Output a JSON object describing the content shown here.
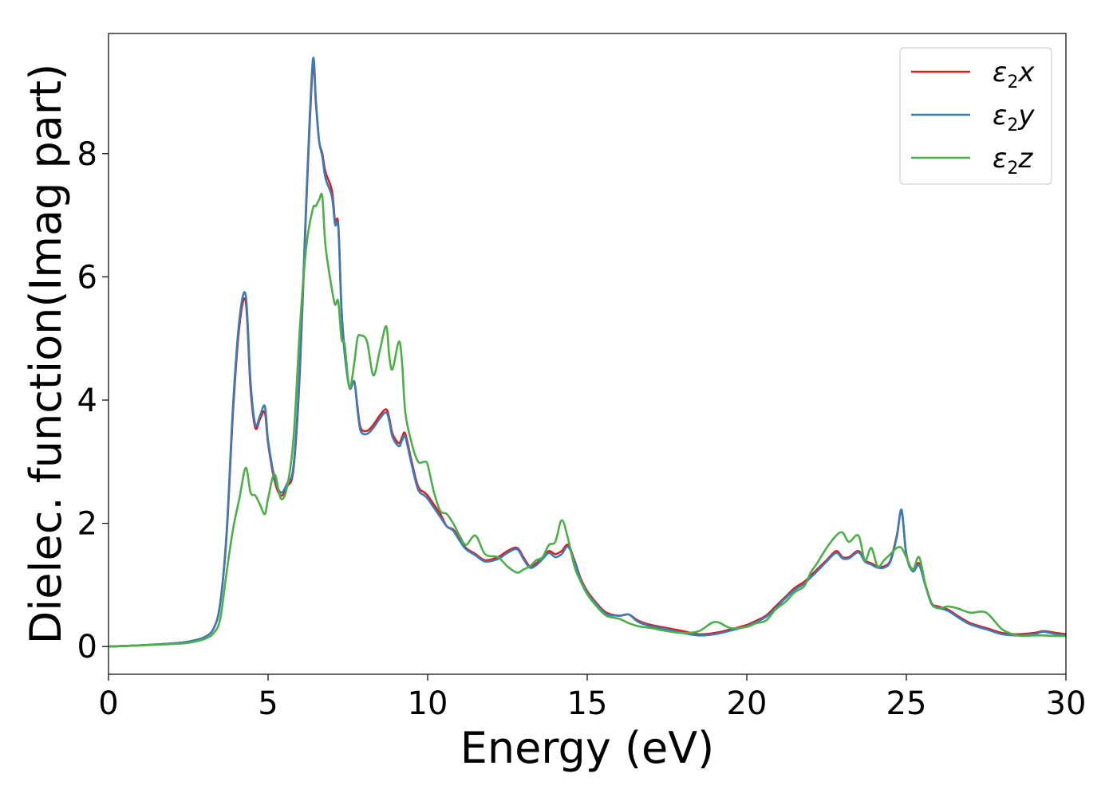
{
  "chart_data": {
    "type": "line",
    "title": "",
    "xlabel": "Energy (eV)",
    "ylabel": "Dielec. function(Imag part)",
    "xlim": [
      0,
      30
    ],
    "ylim": [
      -0.45,
      9.95
    ],
    "xticks": [
      0,
      5,
      10,
      15,
      20,
      25,
      30
    ],
    "yticks": [
      0,
      2,
      4,
      6,
      8
    ],
    "grid": false,
    "legend_position": "top-right",
    "series": [
      {
        "name": "ε2x",
        "label_base": "ε",
        "label_sub": "2",
        "label_axis": "x",
        "color": "#e41a1c",
        "x": [
          0,
          1,
          2,
          2.5,
          3,
          3.3,
          3.5,
          3.7,
          3.9,
          4.1,
          4.3,
          4.45,
          4.6,
          4.75,
          4.9,
          5.0,
          5.2,
          5.4,
          5.6,
          5.8,
          6.0,
          6.2,
          6.4,
          6.5,
          6.6,
          6.7,
          6.8,
          7.0,
          7.1,
          7.2,
          7.3,
          7.4,
          7.55,
          7.7,
          7.8,
          7.9,
          8.1,
          8.3,
          8.5,
          8.7,
          8.8,
          8.9,
          9.1,
          9.2,
          9.3,
          9.5,
          9.7,
          9.9,
          10.0,
          10.2,
          10.4,
          10.6,
          10.8,
          11.0,
          11.2,
          11.5,
          11.8,
          12.2,
          12.5,
          12.8,
          13.0,
          13.2,
          13.4,
          13.6,
          13.8,
          14.0,
          14.2,
          14.4,
          14.6,
          14.8,
          15.0,
          15.3,
          15.6,
          16.0,
          16.3,
          16.6,
          17.0,
          17.5,
          18.0,
          18.5,
          19.0,
          19.5,
          20.0,
          20.3,
          20.6,
          20.9,
          21.2,
          21.5,
          21.8,
          22.0,
          22.2,
          22.5,
          22.8,
          23.0,
          23.2,
          23.5,
          23.7,
          23.9,
          24.1,
          24.3,
          24.5,
          24.7,
          24.85,
          25.0,
          25.2,
          25.4,
          25.6,
          25.8,
          26.0,
          26.3,
          26.6,
          27.0,
          27.5,
          28.0,
          28.5,
          29.0,
          29.3,
          29.7,
          30.0
        ],
        "y": [
          0,
          0.02,
          0.05,
          0.08,
          0.15,
          0.3,
          0.7,
          1.8,
          3.8,
          5.2,
          5.6,
          4.2,
          3.55,
          3.7,
          3.8,
          3.3,
          2.7,
          2.45,
          2.6,
          2.9,
          4.5,
          7.2,
          9.4,
          8.8,
          8.2,
          8.0,
          7.7,
          7.4,
          6.9,
          6.85,
          5.5,
          4.8,
          4.2,
          4.3,
          3.9,
          3.55,
          3.5,
          3.6,
          3.75,
          3.85,
          3.7,
          3.45,
          3.3,
          3.4,
          3.45,
          3.0,
          2.6,
          2.5,
          2.45,
          2.3,
          2.15,
          1.95,
          1.9,
          1.75,
          1.6,
          1.5,
          1.4,
          1.45,
          1.55,
          1.6,
          1.45,
          1.3,
          1.35,
          1.45,
          1.55,
          1.5,
          1.55,
          1.65,
          1.4,
          1.1,
          0.9,
          0.7,
          0.55,
          0.5,
          0.52,
          0.42,
          0.35,
          0.3,
          0.25,
          0.2,
          0.22,
          0.28,
          0.35,
          0.42,
          0.5,
          0.65,
          0.8,
          0.95,
          1.05,
          1.15,
          1.25,
          1.4,
          1.55,
          1.45,
          1.45,
          1.55,
          1.4,
          1.35,
          1.3,
          1.3,
          1.4,
          1.8,
          2.2,
          1.5,
          1.25,
          1.35,
          1.0,
          0.7,
          0.65,
          0.6,
          0.5,
          0.38,
          0.3,
          0.22,
          0.2,
          0.22,
          0.25,
          0.22,
          0.2
        ]
      },
      {
        "name": "ε2y",
        "label_base": "ε",
        "label_sub": "2",
        "label_axis": "y",
        "color": "#377eb8",
        "x": [
          0,
          1,
          2,
          2.5,
          3,
          3.3,
          3.5,
          3.7,
          3.9,
          4.1,
          4.3,
          4.45,
          4.6,
          4.75,
          4.9,
          5.0,
          5.2,
          5.4,
          5.6,
          5.8,
          6.0,
          6.2,
          6.4,
          6.5,
          6.6,
          6.7,
          6.8,
          7.0,
          7.1,
          7.2,
          7.3,
          7.4,
          7.55,
          7.7,
          7.8,
          7.9,
          8.1,
          8.3,
          8.5,
          8.7,
          8.8,
          8.9,
          9.1,
          9.2,
          9.3,
          9.5,
          9.7,
          9.9,
          10.0,
          10.2,
          10.4,
          10.6,
          10.8,
          11.0,
          11.2,
          11.5,
          11.8,
          12.2,
          12.5,
          12.8,
          13.0,
          13.2,
          13.4,
          13.6,
          13.8,
          14.0,
          14.2,
          14.4,
          14.6,
          14.8,
          15.0,
          15.3,
          15.6,
          16.0,
          16.3,
          16.6,
          17.0,
          17.5,
          18.0,
          18.5,
          19.0,
          19.5,
          20.0,
          20.3,
          20.6,
          20.9,
          21.2,
          21.5,
          21.8,
          22.0,
          22.2,
          22.5,
          22.8,
          23.0,
          23.2,
          23.5,
          23.7,
          23.9,
          24.1,
          24.3,
          24.5,
          24.7,
          24.85,
          25.0,
          25.2,
          25.4,
          25.6,
          25.8,
          26.0,
          26.3,
          26.6,
          27.0,
          27.5,
          28.0,
          28.5,
          29.0,
          29.3,
          29.7,
          30.0
        ],
        "y": [
          0,
          0.02,
          0.05,
          0.08,
          0.15,
          0.3,
          0.7,
          1.85,
          3.9,
          5.3,
          5.7,
          4.3,
          3.6,
          3.75,
          3.9,
          3.35,
          2.75,
          2.5,
          2.65,
          2.95,
          4.6,
          7.3,
          9.5,
          8.85,
          8.2,
          7.95,
          7.6,
          7.3,
          6.85,
          6.8,
          5.45,
          4.75,
          4.2,
          4.3,
          3.85,
          3.5,
          3.45,
          3.55,
          3.7,
          3.8,
          3.65,
          3.4,
          3.25,
          3.35,
          3.4,
          2.95,
          2.55,
          2.45,
          2.4,
          2.25,
          2.1,
          1.95,
          1.88,
          1.72,
          1.58,
          1.48,
          1.38,
          1.42,
          1.52,
          1.58,
          1.42,
          1.28,
          1.32,
          1.42,
          1.52,
          1.45,
          1.5,
          1.62,
          1.38,
          1.08,
          0.88,
          0.68,
          0.53,
          0.5,
          0.52,
          0.4,
          0.33,
          0.28,
          0.22,
          0.18,
          0.2,
          0.26,
          0.33,
          0.4,
          0.48,
          0.62,
          0.78,
          0.92,
          1.02,
          1.12,
          1.22,
          1.38,
          1.52,
          1.43,
          1.43,
          1.53,
          1.38,
          1.33,
          1.28,
          1.28,
          1.38,
          1.78,
          2.22,
          1.48,
          1.22,
          1.32,
          0.98,
          0.68,
          0.63,
          0.58,
          0.48,
          0.36,
          0.28,
          0.2,
          0.18,
          0.2,
          0.24,
          0.2,
          0.18
        ]
      },
      {
        "name": "ε2z",
        "label_base": "ε",
        "label_sub": "2",
        "label_axis": "z",
        "color": "#4daf4a",
        "x": [
          0,
          1,
          2,
          2.5,
          3,
          3.3,
          3.5,
          3.7,
          3.9,
          4.1,
          4.3,
          4.45,
          4.6,
          4.75,
          4.9,
          5.0,
          5.2,
          5.4,
          5.6,
          5.8,
          6.0,
          6.2,
          6.4,
          6.5,
          6.6,
          6.7,
          6.8,
          7.0,
          7.1,
          7.2,
          7.3,
          7.4,
          7.55,
          7.7,
          7.8,
          7.9,
          8.1,
          8.3,
          8.5,
          8.7,
          8.8,
          8.9,
          9.1,
          9.2,
          9.3,
          9.5,
          9.7,
          9.9,
          10.0,
          10.2,
          10.4,
          10.6,
          10.8,
          11.0,
          11.2,
          11.5,
          11.8,
          12.2,
          12.5,
          12.8,
          13.0,
          13.2,
          13.4,
          13.6,
          13.8,
          14.0,
          14.2,
          14.4,
          14.6,
          14.8,
          15.0,
          15.3,
          15.6,
          16.0,
          16.3,
          16.6,
          17.0,
          17.5,
          18.0,
          18.5,
          19.0,
          19.5,
          20.0,
          20.3,
          20.6,
          20.9,
          21.2,
          21.5,
          21.8,
          22.0,
          22.2,
          22.5,
          22.8,
          23.0,
          23.2,
          23.5,
          23.7,
          23.9,
          24.1,
          24.3,
          24.5,
          24.7,
          24.85,
          25.0,
          25.2,
          25.4,
          25.6,
          25.8,
          26.0,
          26.3,
          26.6,
          27.0,
          27.5,
          28.0,
          28.5,
          29.0,
          29.3,
          29.7,
          30.0
        ],
        "y": [
          0,
          0.02,
          0.04,
          0.06,
          0.12,
          0.22,
          0.45,
          1.2,
          1.9,
          2.4,
          2.9,
          2.5,
          2.45,
          2.3,
          2.15,
          2.4,
          2.8,
          2.4,
          2.6,
          3.4,
          5.2,
          6.5,
          7.1,
          7.15,
          7.25,
          7.3,
          6.5,
          5.8,
          5.55,
          5.6,
          5.0,
          4.9,
          4.2,
          4.6,
          5.0,
          5.05,
          4.95,
          4.4,
          4.8,
          5.2,
          4.7,
          4.5,
          4.95,
          4.6,
          3.8,
          3.3,
          3.0,
          3.0,
          2.95,
          2.5,
          2.2,
          2.15,
          2.0,
          1.8,
          1.65,
          1.8,
          1.5,
          1.45,
          1.3,
          1.2,
          1.25,
          1.3,
          1.4,
          1.45,
          1.65,
          1.7,
          2.05,
          1.75,
          1.3,
          1.05,
          0.85,
          0.65,
          0.5,
          0.45,
          0.38,
          0.33,
          0.3,
          0.25,
          0.22,
          0.25,
          0.4,
          0.3,
          0.32,
          0.38,
          0.42,
          0.6,
          0.72,
          0.88,
          0.98,
          1.2,
          1.35,
          1.6,
          1.8,
          1.85,
          1.7,
          1.8,
          1.4,
          1.6,
          1.3,
          1.4,
          1.5,
          1.6,
          1.6,
          1.45,
          1.25,
          1.45,
          1.0,
          0.7,
          0.62,
          0.65,
          0.62,
          0.55,
          0.55,
          0.28,
          0.18,
          0.18,
          0.18,
          0.17,
          0.17
        ]
      }
    ]
  }
}
